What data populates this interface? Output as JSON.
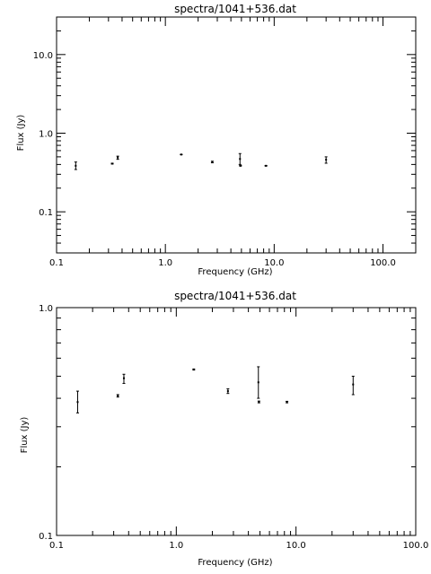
{
  "chart_data": [
    {
      "type": "scatter",
      "title": "spectra/1041+536.dat",
      "xlabel": "Frequency (GHz)",
      "ylabel": "Flux (Jy)",
      "xscale": "log",
      "yscale": "log",
      "xlim": [
        0.1,
        200
      ],
      "ylim": [
        0.03,
        30
      ],
      "xticks": [
        "0.1",
        "1.0",
        "10.0",
        "100.0"
      ],
      "xtick_values": [
        0.1,
        1,
        10,
        100
      ],
      "yticks": [
        "0.1",
        "1.0",
        "10.0"
      ],
      "ytick_values": [
        0.1,
        1,
        10
      ],
      "grid": false,
      "points": [
        {
          "x": 0.15,
          "y": 0.385,
          "ylo": 0.345,
          "yhi": 0.43
        },
        {
          "x": 0.325,
          "y": 0.41,
          "ylo": 0.405,
          "yhi": 0.415
        },
        {
          "x": 0.365,
          "y": 0.49,
          "ylo": 0.465,
          "yhi": 0.51
        },
        {
          "x": 1.4,
          "y": 0.535,
          "ylo": 0.532,
          "yhi": 0.538
        },
        {
          "x": 2.7,
          "y": 0.43,
          "ylo": 0.42,
          "yhi": 0.44
        },
        {
          "x": 4.85,
          "y": 0.47,
          "ylo": 0.4,
          "yhi": 0.55
        },
        {
          "x": 4.9,
          "y": 0.385,
          "ylo": 0.382,
          "yhi": 0.389
        },
        {
          "x": 8.4,
          "y": 0.385,
          "ylo": 0.382,
          "yhi": 0.388
        },
        {
          "x": 30,
          "y": 0.46,
          "ylo": 0.415,
          "yhi": 0.5
        }
      ]
    },
    {
      "type": "scatter",
      "title": "spectra/1041+536.dat",
      "xlabel": "Frequency (GHz)",
      "ylabel": "Flux (Jy)",
      "xscale": "log",
      "yscale": "log",
      "xlim": [
        0.1,
        100
      ],
      "ylim": [
        0.1,
        1.0
      ],
      "xticks": [
        "0.1",
        "1.0",
        "10.0",
        "100.0"
      ],
      "xtick_values": [
        0.1,
        1,
        10,
        100
      ],
      "yticks": [
        "0.1",
        "1.0"
      ],
      "ytick_values": [
        0.1,
        1
      ],
      "grid": false,
      "points": [
        {
          "x": 0.15,
          "y": 0.385,
          "ylo": 0.345,
          "yhi": 0.43
        },
        {
          "x": 0.325,
          "y": 0.41,
          "ylo": 0.405,
          "yhi": 0.415
        },
        {
          "x": 0.365,
          "y": 0.49,
          "ylo": 0.465,
          "yhi": 0.51
        },
        {
          "x": 1.4,
          "y": 0.535,
          "ylo": 0.532,
          "yhi": 0.538
        },
        {
          "x": 2.7,
          "y": 0.43,
          "ylo": 0.42,
          "yhi": 0.44
        },
        {
          "x": 4.85,
          "y": 0.47,
          "ylo": 0.4,
          "yhi": 0.55
        },
        {
          "x": 4.9,
          "y": 0.385,
          "ylo": 0.382,
          "yhi": 0.389
        },
        {
          "x": 8.4,
          "y": 0.385,
          "ylo": 0.382,
          "yhi": 0.388
        },
        {
          "x": 30,
          "y": 0.46,
          "ylo": 0.415,
          "yhi": 0.5
        }
      ]
    }
  ]
}
